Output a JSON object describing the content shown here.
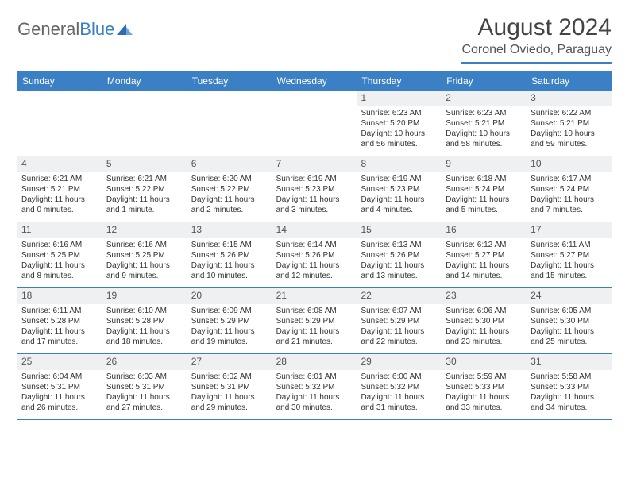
{
  "logo": {
    "part1": "General",
    "part2": "Blue"
  },
  "title": "August 2024",
  "location": "Coronel Oviedo, Paraguay",
  "colors": {
    "header_bg": "#3b7fc4",
    "header_text": "#ffffff",
    "daynum_bg": "#eef0f2",
    "week_border": "#3b7fc4",
    "body_text": "#333333",
    "background": "#ffffff"
  },
  "weekdays": [
    "Sunday",
    "Monday",
    "Tuesday",
    "Wednesday",
    "Thursday",
    "Friday",
    "Saturday"
  ],
  "month": {
    "year": 2024,
    "month": 8,
    "first_weekday_index": 4,
    "days_in_month": 31
  },
  "days": {
    "1": {
      "sunrise": "6:23 AM",
      "sunset": "5:20 PM",
      "daylight": "10 hours and 56 minutes."
    },
    "2": {
      "sunrise": "6:23 AM",
      "sunset": "5:21 PM",
      "daylight": "10 hours and 58 minutes."
    },
    "3": {
      "sunrise": "6:22 AM",
      "sunset": "5:21 PM",
      "daylight": "10 hours and 59 minutes."
    },
    "4": {
      "sunrise": "6:21 AM",
      "sunset": "5:21 PM",
      "daylight": "11 hours and 0 minutes."
    },
    "5": {
      "sunrise": "6:21 AM",
      "sunset": "5:22 PM",
      "daylight": "11 hours and 1 minute."
    },
    "6": {
      "sunrise": "6:20 AM",
      "sunset": "5:22 PM",
      "daylight": "11 hours and 2 minutes."
    },
    "7": {
      "sunrise": "6:19 AM",
      "sunset": "5:23 PM",
      "daylight": "11 hours and 3 minutes."
    },
    "8": {
      "sunrise": "6:19 AM",
      "sunset": "5:23 PM",
      "daylight": "11 hours and 4 minutes."
    },
    "9": {
      "sunrise": "6:18 AM",
      "sunset": "5:24 PM",
      "daylight": "11 hours and 5 minutes."
    },
    "10": {
      "sunrise": "6:17 AM",
      "sunset": "5:24 PM",
      "daylight": "11 hours and 7 minutes."
    },
    "11": {
      "sunrise": "6:16 AM",
      "sunset": "5:25 PM",
      "daylight": "11 hours and 8 minutes."
    },
    "12": {
      "sunrise": "6:16 AM",
      "sunset": "5:25 PM",
      "daylight": "11 hours and 9 minutes."
    },
    "13": {
      "sunrise": "6:15 AM",
      "sunset": "5:26 PM",
      "daylight": "11 hours and 10 minutes."
    },
    "14": {
      "sunrise": "6:14 AM",
      "sunset": "5:26 PM",
      "daylight": "11 hours and 12 minutes."
    },
    "15": {
      "sunrise": "6:13 AM",
      "sunset": "5:26 PM",
      "daylight": "11 hours and 13 minutes."
    },
    "16": {
      "sunrise": "6:12 AM",
      "sunset": "5:27 PM",
      "daylight": "11 hours and 14 minutes."
    },
    "17": {
      "sunrise": "6:11 AM",
      "sunset": "5:27 PM",
      "daylight": "11 hours and 15 minutes."
    },
    "18": {
      "sunrise": "6:11 AM",
      "sunset": "5:28 PM",
      "daylight": "11 hours and 17 minutes."
    },
    "19": {
      "sunrise": "6:10 AM",
      "sunset": "5:28 PM",
      "daylight": "11 hours and 18 minutes."
    },
    "20": {
      "sunrise": "6:09 AM",
      "sunset": "5:29 PM",
      "daylight": "11 hours and 19 minutes."
    },
    "21": {
      "sunrise": "6:08 AM",
      "sunset": "5:29 PM",
      "daylight": "11 hours and 21 minutes."
    },
    "22": {
      "sunrise": "6:07 AM",
      "sunset": "5:29 PM",
      "daylight": "11 hours and 22 minutes."
    },
    "23": {
      "sunrise": "6:06 AM",
      "sunset": "5:30 PM",
      "daylight": "11 hours and 23 minutes."
    },
    "24": {
      "sunrise": "6:05 AM",
      "sunset": "5:30 PM",
      "daylight": "11 hours and 25 minutes."
    },
    "25": {
      "sunrise": "6:04 AM",
      "sunset": "5:31 PM",
      "daylight": "11 hours and 26 minutes."
    },
    "26": {
      "sunrise": "6:03 AM",
      "sunset": "5:31 PM",
      "daylight": "11 hours and 27 minutes."
    },
    "27": {
      "sunrise": "6:02 AM",
      "sunset": "5:31 PM",
      "daylight": "11 hours and 29 minutes."
    },
    "28": {
      "sunrise": "6:01 AM",
      "sunset": "5:32 PM",
      "daylight": "11 hours and 30 minutes."
    },
    "29": {
      "sunrise": "6:00 AM",
      "sunset": "5:32 PM",
      "daylight": "11 hours and 31 minutes."
    },
    "30": {
      "sunrise": "5:59 AM",
      "sunset": "5:33 PM",
      "daylight": "11 hours and 33 minutes."
    },
    "31": {
      "sunrise": "5:58 AM",
      "sunset": "5:33 PM",
      "daylight": "11 hours and 34 minutes."
    }
  },
  "labels": {
    "sunrise": "Sunrise:",
    "sunset": "Sunset:",
    "daylight": "Daylight:"
  }
}
